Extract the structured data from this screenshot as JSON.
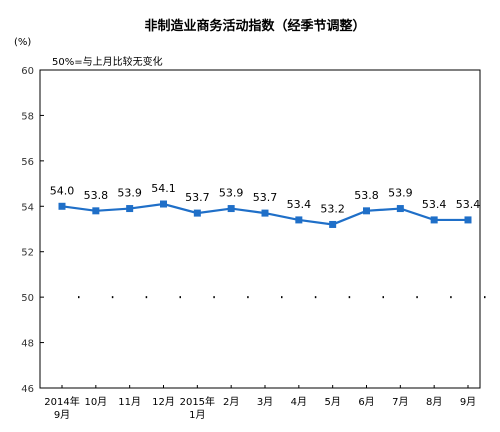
{
  "chart_data": {
    "type": "line",
    "title": "非制造业商务活动指数（经季节调整）",
    "unit_label": "(%)",
    "note": "50%=与上月比较无变化",
    "ylim": [
      46,
      60
    ],
    "yticks": [
      "46",
      "48",
      "50",
      "52",
      "54",
      "56",
      "58",
      "60"
    ],
    "categories": [
      [
        "2014年",
        "9月"
      ],
      [
        "10月"
      ],
      [
        "11月"
      ],
      [
        "12月"
      ],
      [
        "2015年",
        "1月"
      ],
      [
        "2月"
      ],
      [
        "3月"
      ],
      [
        "4月"
      ],
      [
        "5月"
      ],
      [
        "6月"
      ],
      [
        "7月"
      ],
      [
        "8月"
      ],
      [
        "9月"
      ]
    ],
    "series": [
      {
        "values": [
          54.0,
          53.8,
          53.9,
          54.1,
          53.7,
          53.9,
          53.7,
          53.4,
          53.2,
          53.8,
          53.9,
          53.4,
          53.4
        ],
        "labels": [
          "54.0",
          "53.8",
          "53.9",
          "54.1",
          "53.7",
          "53.9",
          "53.7",
          "53.4",
          "53.2",
          "53.8",
          "53.9",
          "53.4",
          "53.4"
        ],
        "color": "#1f6fc8"
      }
    ],
    "reference_line": 50,
    "grid": false
  }
}
